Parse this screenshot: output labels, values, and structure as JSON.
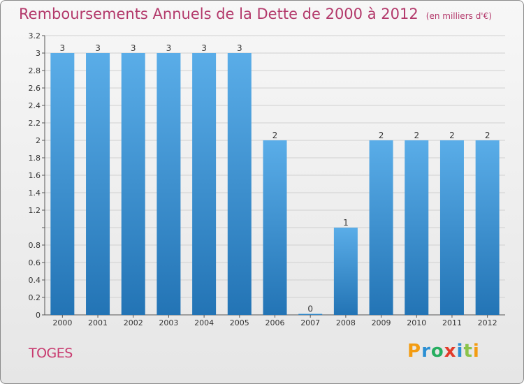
{
  "header": {
    "title": "Remboursements Annuels de la Dette de 2000 à 2012",
    "unit": "(en milliers d'€)"
  },
  "commune": "TOGES",
  "logo": {
    "letters": [
      "P",
      "r",
      "o",
      "x",
      "i",
      "t",
      "i"
    ],
    "colors": [
      "#f39c12",
      "#2b8fd3",
      "#27ae60",
      "#e23b2a",
      "#2b8fd3",
      "#8bc34a",
      "#f39c12"
    ]
  },
  "colors": {
    "bar_light": "#5aade8",
    "bar_dark": "#2374b5",
    "grid": "#d0d0d0",
    "title": "#b3396b"
  },
  "chart_data": {
    "type": "bar",
    "title": "Remboursements Annuels de la Dette de 2000 à 2012",
    "categories": [
      "2000",
      "2001",
      "2002",
      "2003",
      "2004",
      "2005",
      "2006",
      "2007",
      "2008",
      "2009",
      "2010",
      "2011",
      "2012"
    ],
    "values": [
      3,
      3,
      3,
      3,
      3,
      3,
      2,
      0,
      1,
      2,
      2,
      2,
      2
    ],
    "data_labels": [
      "3",
      "3",
      "3",
      "3",
      "3",
      "3",
      "2",
      "0",
      "1",
      "2",
      "2",
      "2",
      "2"
    ],
    "ylim": [
      0,
      3.2
    ],
    "yticks": [
      0,
      0.2,
      0.4,
      0.6,
      0.8,
      1,
      1.2,
      1.4,
      1.6,
      1.8,
      2,
      2.2,
      2.4,
      2.6,
      2.8,
      3,
      3.2
    ],
    "ytick_labels": [
      "0",
      "0.2",
      "0.4",
      "0.6",
      "0.8",
      "",
      "1.2",
      "1.4",
      "1.6",
      "1.8",
      "2",
      "2.2",
      "2.4",
      "2.6",
      "2.8",
      "3",
      "3.2"
    ],
    "grid": true,
    "legend": "none"
  }
}
